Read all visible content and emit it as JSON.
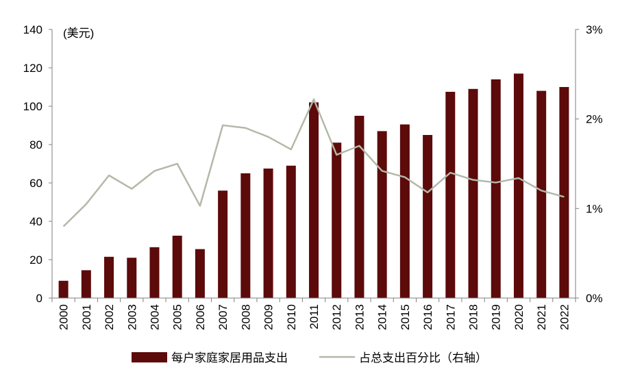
{
  "chart_data": {
    "type": "bar",
    "categories": [
      "2000",
      "2001",
      "2002",
      "2003",
      "2004",
      "2005",
      "2006",
      "2007",
      "2008",
      "2009",
      "2010",
      "2011",
      "2012",
      "2013",
      "2014",
      "2015",
      "2016",
      "2017",
      "2018",
      "2019",
      "2020",
      "2021",
      "2022"
    ],
    "series": [
      {
        "name": "每户家庭家居用品支出",
        "type": "bar",
        "axis": "left",
        "color": "#5c0a0a",
        "values": [
          9,
          14.5,
          21.5,
          21,
          26.5,
          32.5,
          25.5,
          56,
          65,
          67.5,
          69,
          102,
          81,
          95,
          87,
          90.5,
          85,
          107.5,
          109,
          114,
          117,
          108,
          110
        ]
      },
      {
        "name": "占总支出百分比（右轴）",
        "type": "line",
        "axis": "right",
        "color": "#b3b8a8",
        "values": [
          0.8,
          1.05,
          1.37,
          1.22,
          1.42,
          1.5,
          1.03,
          1.93,
          1.9,
          1.8,
          1.66,
          2.22,
          1.6,
          1.7,
          1.42,
          1.35,
          1.18,
          1.4,
          1.32,
          1.29,
          1.34,
          1.2,
          1.13
        ]
      }
    ],
    "y_left": {
      "unit_label": "(美元)",
      "ylim": [
        0,
        140
      ],
      "ticks": [
        "0",
        "20",
        "40",
        "60",
        "80",
        "100",
        "120",
        "140"
      ]
    },
    "y_right": {
      "ylim": [
        0,
        3
      ],
      "ticks": [
        "0%",
        "1%",
        "2%",
        "3%"
      ]
    },
    "grid": false,
    "legend_position": "bottom"
  }
}
